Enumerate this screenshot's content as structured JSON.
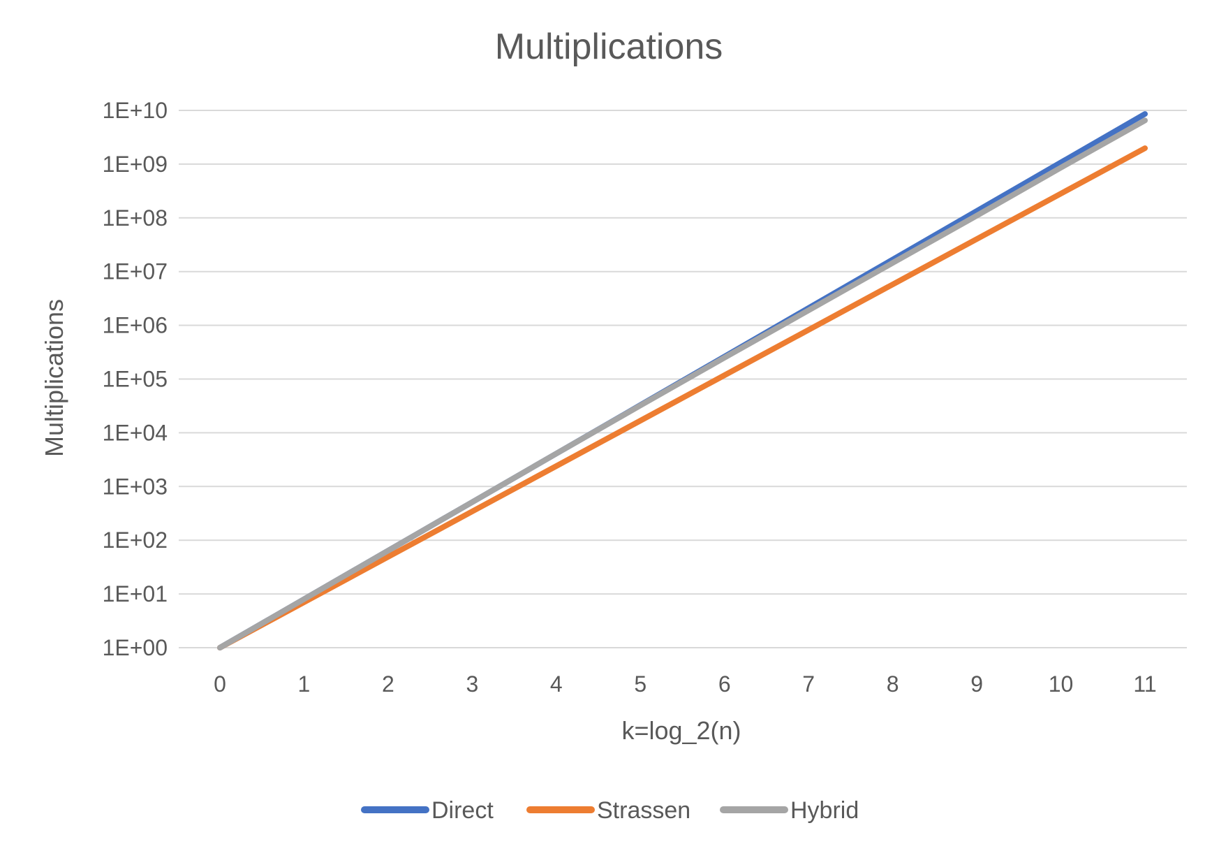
{
  "chart_data": {
    "type": "line",
    "title": "Multiplications",
    "xlabel": "k=log_2(n)",
    "ylabel": "Multiplications",
    "x": [
      0,
      1,
      2,
      3,
      4,
      5,
      6,
      7,
      8,
      9,
      10,
      11
    ],
    "x_tick_labels": [
      "0",
      "1",
      "2",
      "3",
      "4",
      "5",
      "6",
      "7",
      "8",
      "9",
      "10",
      "11"
    ],
    "y_scale": "log10",
    "ylim": [
      1,
      10000000000
    ],
    "y_tick_values": [
      1,
      10,
      100,
      1000,
      10000,
      100000,
      1000000,
      10000000,
      100000000,
      1000000000,
      10000000000
    ],
    "y_tick_labels": [
      "1E+00",
      "1E+01",
      "1E+02",
      "1E+03",
      "1E+04",
      "1E+05",
      "1E+06",
      "1E+07",
      "1E+08",
      "1E+09",
      "1E+10"
    ],
    "grid": true,
    "legend_position": "bottom",
    "series": [
      {
        "name": "Direct",
        "color": "#4472c4",
        "values": [
          1,
          8,
          64,
          512,
          4096,
          32768,
          262144,
          2097152,
          16777216,
          134217728,
          1073741824,
          8589934592
        ]
      },
      {
        "name": "Strassen",
        "color": "#ed7d31",
        "values": [
          1,
          7,
          49,
          343,
          2401,
          16807,
          117649,
          823543,
          5764801,
          40353607,
          282475249,
          1977326743
        ]
      },
      {
        "name": "Hybrid",
        "color": "#a5a5a5",
        "values": [
          1,
          8,
          64,
          512,
          4096,
          32256,
          250000,
          1900000,
          14500000,
          110000000,
          860000000,
          6500000000
        ]
      }
    ]
  }
}
